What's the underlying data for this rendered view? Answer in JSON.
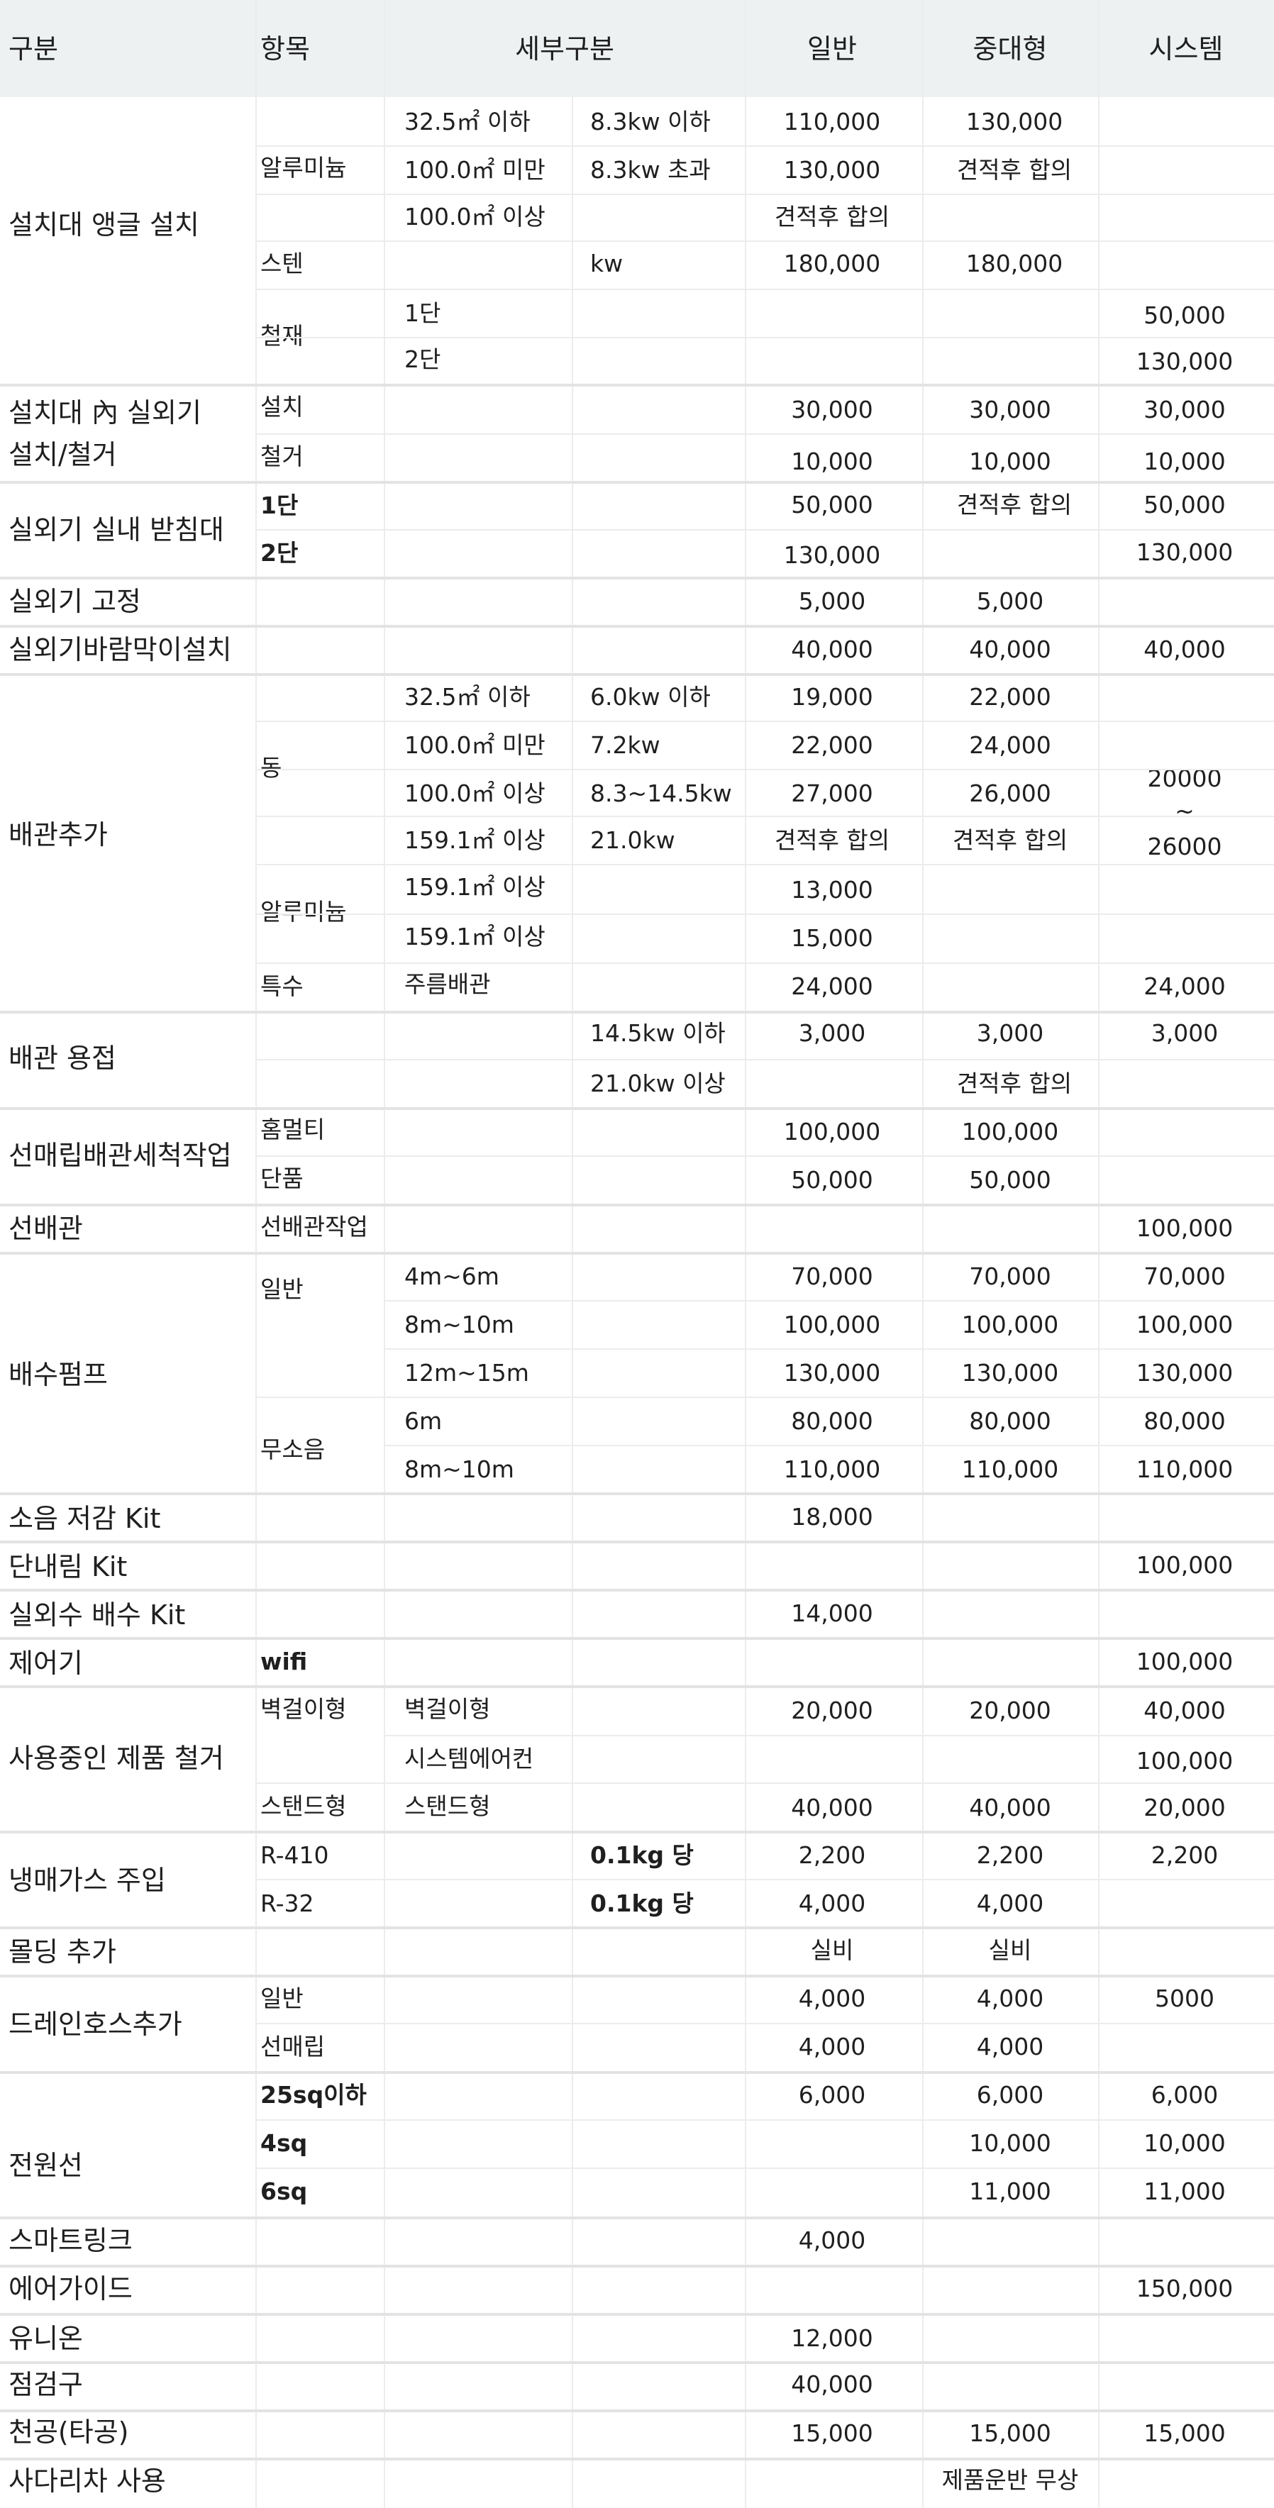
{
  "header": {
    "gubun": "구분",
    "hangmok": "항목",
    "sebu": "세부구분",
    "ilban": "일반",
    "jungdae": "중대형",
    "system": "시스템"
  },
  "angle": {
    "title": "설치대 앵글 설치",
    "alu": "알루미늄",
    "r1_area": "32.5㎡ 이하",
    "r1_kw": "8.3kw 이하",
    "r1_ilban": "110,000",
    "r1_jungdae": "130,000",
    "r2_area": "100.0㎡ 미만",
    "r2_kw": "8.3kw 초과",
    "r2_ilban": "130,000",
    "r2_jungdae": "견적후 합의",
    "r3_area": "100.0㎡ 이상",
    "r3_ilban": "견적후 합의",
    "sten": "스텐",
    "sten_kw": "kw",
    "sten_ilban": "180,000",
    "sten_jungdae": "180,000",
    "steel": "철재",
    "steel1": "1단",
    "steel1_system": "50,000",
    "steel2": "2단",
    "steel2_system": "130,000"
  },
  "inner": {
    "title1": "설치대 內 실외기",
    "title2": "설치/철거",
    "install": "설치",
    "install_ilban": "30,000",
    "install_jungdae": "30,000",
    "install_system": "30,000",
    "remove": "철거",
    "remove_ilban": "10,000",
    "remove_jungdae": "10,000",
    "remove_system": "10,000"
  },
  "stand": {
    "title": "실외기 실내 받침대",
    "s1": "1단",
    "s1_ilban": "50,000",
    "s1_jungdae": "견적후 합의",
    "s1_system": "50,000",
    "s2": "2단",
    "s2_ilban": "130,000",
    "s2_system": "130,000"
  },
  "fix": {
    "title": "실외기 고정",
    "ilban": "5,000",
    "jungdae": "5,000"
  },
  "wind": {
    "title": "실외기바람막이설치",
    "ilban": "40,000",
    "jungdae": "40,000",
    "system": "40,000"
  },
  "pipe": {
    "title": "배관추가",
    "copper": "동",
    "r1_area": "32.5㎡ 이하",
    "r1_kw": "6.0kw 이하",
    "r1_ilban": "19,000",
    "r1_jungdae": "22,000",
    "r2_area": "100.0㎡ 미만",
    "r2_kw": "7.2kw",
    "r2_ilban": "22,000",
    "r2_jungdae": "24,000",
    "r3_area": "100.0㎡ 이상",
    "r3_kw": "8.3~14.5kw",
    "r3_ilban": "27,000",
    "r3_jungdae": "26,000",
    "r4_area": "159.1㎡ 이상",
    "r4_kw": "21.0kw",
    "r4_ilban": "견적후 합의",
    "r4_jungdae": "견적후 합의",
    "system_a": "20000",
    "system_b": "~",
    "system_c": "26000",
    "alu": "알루미늄",
    "a1_area": "159.1㎡ 이상",
    "a1_ilban": "13,000",
    "a2_area": "159.1㎡ 이상",
    "a2_ilban": "15,000",
    "special": "특수",
    "special_sub": "주름배관",
    "special_ilban": "24,000",
    "special_system": "24,000"
  },
  "weld": {
    "title": "배관 용접",
    "r1_kw": "14.5kw 이하",
    "r1_ilban": "3,000",
    "r1_jungdae": "3,000",
    "r1_system": "3,000",
    "r2_kw": "21.0kw 이상",
    "r2_jungdae": "견적후 합의"
  },
  "clean": {
    "title": "선매립배관세척작업",
    "multi": "홈멀티",
    "multi_ilban": "100,000",
    "multi_jungdae": "100,000",
    "single": "단품",
    "single_ilban": "50,000",
    "single_jungdae": "50,000"
  },
  "pre": {
    "title": "선배관",
    "work": "선배관작업",
    "system": "100,000"
  },
  "pump": {
    "title": "배수펌프",
    "general": "일반",
    "g1": "4m~6m",
    "g1_ilban": "70,000",
    "g1_jungdae": "70,000",
    "g1_system": "70,000",
    "g2": "8m~10m",
    "g2_ilban": "100,000",
    "g2_jungdae": "100,000",
    "g2_system": "100,000",
    "g3": "12m~15m",
    "g3_ilban": "130,000",
    "g3_jungdae": "130,000",
    "g3_system": "130,000",
    "silent": "무소음",
    "s1": "6m",
    "s1_ilban": "80,000",
    "s1_jungdae": "80,000",
    "s1_system": "80,000",
    "s2": "8m~10m",
    "s2_ilban": "110,000",
    "s2_jungdae": "110,000",
    "s2_system": "110,000"
  },
  "noise": {
    "title": "소음 저감 Kit",
    "ilban": "18,000"
  },
  "dannae": {
    "title": "단내림 Kit",
    "system": "100,000"
  },
  "drainkit": {
    "title": "실외수 배수 Kit",
    "ilban": "14,000"
  },
  "controller": {
    "title": "제어기",
    "item": "wifi",
    "system": "100,000"
  },
  "removal": {
    "title": "사용중인 제품 철거",
    "wall": "벽걸이형",
    "wall_sub": "벽걸이형",
    "wall_ilban": "20,000",
    "wall_jungdae": "20,000",
    "wall_system": "40,000",
    "sys_sub": "시스템에어컨",
    "sys_system": "100,000",
    "standing": "스탠드형",
    "standing_sub": "스탠드형",
    "standing_ilban": "40,000",
    "standing_jungdae": "40,000",
    "standing_system": "20,000"
  },
  "gas": {
    "title": "냉매가스 주입",
    "r410": "R-410",
    "r410_unit": "0.1kg 당",
    "r410_ilban": "2,200",
    "r410_jungdae": "2,200",
    "r410_system": "2,200",
    "r32": "R-32",
    "r32_unit": "0.1kg 당",
    "r32_ilban": "4,000",
    "r32_jungdae": "4,000"
  },
  "molding": {
    "title": "몰딩 추가",
    "ilban": "실비",
    "jungdae": "실비"
  },
  "drainhose": {
    "title": "드레인호스추가",
    "general": "일반",
    "general_ilban": "4,000",
    "general_jungdae": "4,000",
    "general_system": "5000",
    "pre": "선매립",
    "pre_ilban": "4,000",
    "pre_jungdae": "4,000"
  },
  "power": {
    "title": "전원선",
    "p1": "25sq이하",
    "p1_ilban": "6,000",
    "p1_jungdae": "6,000",
    "p1_system": "6,000",
    "p2": "4sq",
    "p2_jungdae": "10,000",
    "p2_system": "10,000",
    "p3": "6sq",
    "p3_jungdae": "11,000",
    "p3_system": "11,000"
  },
  "smartlink": {
    "title": "스마트링크",
    "ilban": "4,000"
  },
  "airguide": {
    "title": "에어가이드",
    "system": "150,000"
  },
  "union": {
    "title": "유니온",
    "ilban": "12,000"
  },
  "check": {
    "title": "점검구",
    "ilban": "40,000"
  },
  "bore": {
    "title": "천공(타공)",
    "ilban": "15,000",
    "jungdae": "15,000",
    "system": "15,000"
  },
  "ladder": {
    "title": "사다리차 사용",
    "note": "제품운반 무상"
  }
}
